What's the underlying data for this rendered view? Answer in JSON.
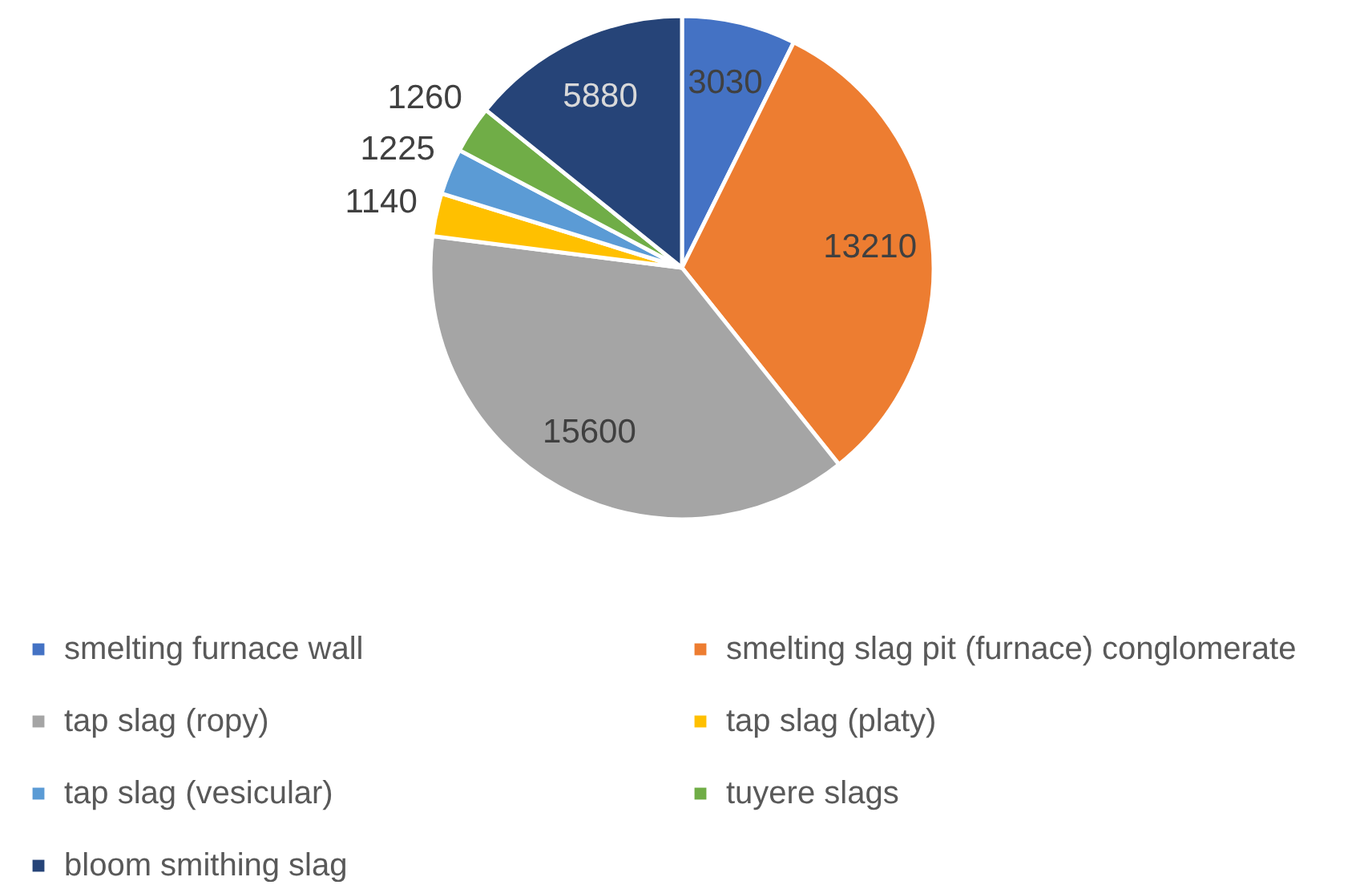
{
  "chart_data": {
    "type": "pie",
    "categories": [
      "smelting furnace wall",
      "smelting slag pit (furnace) conglomerate",
      "tap slag (ropy)",
      "tap slag (platy)",
      "tap slag (vesicular)",
      "tuyere slags",
      "bloom smithing slag"
    ],
    "values": [
      3030,
      13210,
      15600,
      1140,
      1225,
      1260,
      5880
    ],
    "colors": [
      "#4472c4",
      "#ed7d31",
      "#a5a5a5",
      "#ffc000",
      "#5b9bd5",
      "#70ad47",
      "#264478"
    ],
    "data_labels": true,
    "legend": "bottom"
  }
}
